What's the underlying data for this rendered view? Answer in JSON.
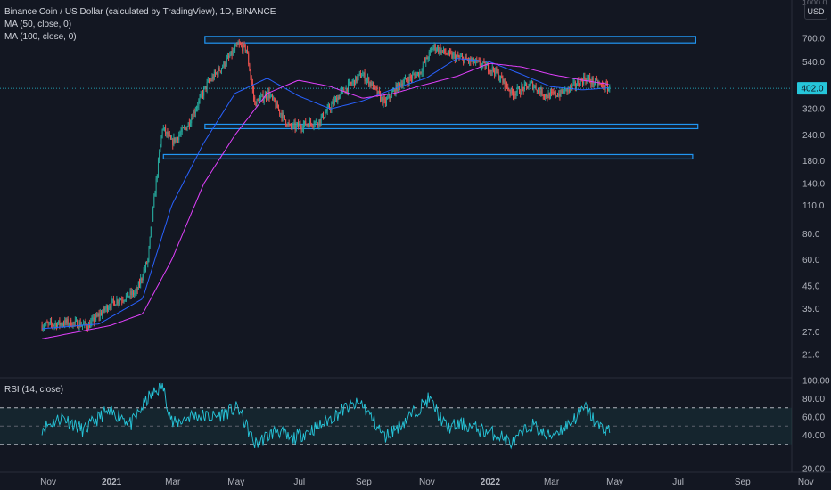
{
  "header": {
    "title": "Binance Coin / US Dollar (calculated by TradingView), 1D, BINANCE",
    "ma1": "MA (50, close, 0)",
    "ma2": "MA (100, close, 0)",
    "currency": "USD"
  },
  "rsi_panel": {
    "label": "RSI (14, close)"
  },
  "colors": {
    "background": "#131722",
    "up": "#26a69a",
    "down": "#ef5350",
    "ma50": "#2962ff",
    "ma100": "#e040fb",
    "zone_border": "#2196f3",
    "rsi_line": "#26c6da",
    "last_price_bg": "#26c6da"
  },
  "chart_data": [
    {
      "type": "candlestick",
      "title": "Binance Coin / US Dollar (calculated by TradingView), 1D, BINANCE",
      "y_scale": "log",
      "ylim": [
        16,
        1000
      ],
      "x_tick_labels": [
        "Nov",
        "2021",
        "Mar",
        "May",
        "Jul",
        "Sep",
        "Nov",
        "2022",
        "Mar",
        "May",
        "Jul",
        "Sep",
        "Nov"
      ],
      "y_tick_labels": [
        "700.0",
        "540.0",
        "400.0",
        "320.0",
        "240.0",
        "180.0",
        "140.0",
        "110.0",
        "80.0",
        "60.0",
        "45.0",
        "35.0",
        "27.0",
        "21.0"
      ],
      "last_price": "402.0",
      "anchors": [
        [
          "2020-10-26",
          29
        ],
        [
          "2020-11-20",
          30
        ],
        [
          "2020-12-10",
          29
        ],
        [
          "2020-12-31",
          37
        ],
        [
          "2021-01-25",
          42
        ],
        [
          "2021-02-05",
          60
        ],
        [
          "2021-02-12",
          130
        ],
        [
          "2021-02-19",
          260
        ],
        [
          "2021-02-28",
          220
        ],
        [
          "2021-03-15",
          265
        ],
        [
          "2021-04-03",
          420
        ],
        [
          "2021-04-20",
          530
        ],
        [
          "2021-05-03",
          650
        ],
        [
          "2021-05-11",
          620
        ],
        [
          "2021-05-19",
          340
        ],
        [
          "2021-06-01",
          380
        ],
        [
          "2021-06-22",
          260
        ],
        [
          "2021-07-20",
          280
        ],
        [
          "2021-08-10",
          380
        ],
        [
          "2021-08-30",
          470
        ],
        [
          "2021-09-07",
          430
        ],
        [
          "2021-09-21",
          340
        ],
        [
          "2021-10-05",
          420
        ],
        [
          "2021-10-25",
          480
        ],
        [
          "2021-11-07",
          640
        ],
        [
          "2021-11-23",
          580
        ],
        [
          "2021-12-04",
          560
        ],
        [
          "2021-12-20",
          530
        ],
        [
          "2022-01-05",
          490
        ],
        [
          "2022-01-22",
          380
        ],
        [
          "2022-02-10",
          420
        ],
        [
          "2022-02-24",
          370
        ],
        [
          "2022-03-10",
          380
        ],
        [
          "2022-03-25",
          420
        ],
        [
          "2022-04-02",
          450
        ],
        [
          "2022-04-15",
          420
        ],
        [
          "2022-04-26",
          402
        ]
      ],
      "moving_averages": [
        {
          "name": "MA (50, close, 0)",
          "anchors": [
            [
              "2020-10-26",
              28
            ],
            [
              "2020-12-20",
              29.5
            ],
            [
              "2021-01-31",
              39
            ],
            [
              "2021-02-28",
              110
            ],
            [
              "2021-03-31",
              220
            ],
            [
              "2021-04-30",
              380
            ],
            [
              "2021-05-31",
              450
            ],
            [
              "2021-06-30",
              370
            ],
            [
              "2021-07-31",
              320
            ],
            [
              "2021-08-31",
              350
            ],
            [
              "2021-09-30",
              400
            ],
            [
              "2021-10-31",
              450
            ],
            [
              "2021-11-30",
              560
            ],
            [
              "2021-12-31",
              540
            ],
            [
              "2022-01-31",
              470
            ],
            [
              "2022-02-28",
              410
            ],
            [
              "2022-03-31",
              395
            ],
            [
              "2022-04-26",
              405
            ]
          ]
        },
        {
          "name": "MA (100, close, 0)",
          "anchors": [
            [
              "2020-10-26",
              25
            ],
            [
              "2020-12-31",
              29
            ],
            [
              "2021-01-31",
              33
            ],
            [
              "2021-02-28",
              60
            ],
            [
              "2021-03-31",
              140
            ],
            [
              "2021-04-30",
              240
            ],
            [
              "2021-05-31",
              380
            ],
            [
              "2021-06-30",
              440
            ],
            [
              "2021-07-31",
              410
            ],
            [
              "2021-08-31",
              360
            ],
            [
              "2021-09-30",
              380
            ],
            [
              "2021-10-31",
              420
            ],
            [
              "2021-11-30",
              460
            ],
            [
              "2021-12-31",
              530
            ],
            [
              "2022-01-31",
              510
            ],
            [
              "2022-02-28",
              470
            ],
            [
              "2022-03-31",
              440
            ],
            [
              "2022-04-26",
              420
            ]
          ]
        }
      ],
      "zones": [
        {
          "from": "2021-04-01",
          "to": "2022-07-18",
          "low": 665,
          "high": 715
        },
        {
          "from": "2021-04-01",
          "to": "2022-07-20",
          "low": 258,
          "high": 270
        },
        {
          "from": "2021-02-20",
          "to": "2022-07-15",
          "low": 185,
          "high": 193
        }
      ]
    },
    {
      "type": "line",
      "title": "RSI (14, close)",
      "ylim": [
        25,
        100
      ],
      "y_tick_labels": [
        "100.00",
        "80.00",
        "60.00",
        "40.00",
        "20.00"
      ],
      "bands": [
        70,
        50,
        30
      ],
      "anchors": [
        [
          "2020-10-26",
          48
        ],
        [
          "2020-11-15",
          60
        ],
        [
          "2020-12-05",
          45
        ],
        [
          "2020-12-25",
          64
        ],
        [
          "2021-01-10",
          62
        ],
        [
          "2021-01-20",
          52
        ],
        [
          "2021-02-05",
          80
        ],
        [
          "2021-02-19",
          95
        ],
        [
          "2021-03-01",
          52
        ],
        [
          "2021-03-20",
          62
        ],
        [
          "2021-04-10",
          60
        ],
        [
          "2021-05-03",
          70
        ],
        [
          "2021-05-19",
          30
        ],
        [
          "2021-06-10",
          46
        ],
        [
          "2021-06-22",
          35
        ],
        [
          "2021-07-20",
          50
        ],
        [
          "2021-08-15",
          70
        ],
        [
          "2021-08-30",
          75
        ],
        [
          "2021-09-21",
          38
        ],
        [
          "2021-10-10",
          55
        ],
        [
          "2021-11-03",
          80
        ],
        [
          "2021-11-20",
          48
        ],
        [
          "2021-12-05",
          52
        ],
        [
          "2021-12-25",
          45
        ],
        [
          "2022-01-10",
          40
        ],
        [
          "2022-01-22",
          30
        ],
        [
          "2022-02-10",
          52
        ],
        [
          "2022-02-25",
          38
        ],
        [
          "2022-03-15",
          50
        ],
        [
          "2022-04-03",
          70
        ],
        [
          "2022-04-15",
          50
        ],
        [
          "2022-04-26",
          45
        ]
      ]
    }
  ]
}
